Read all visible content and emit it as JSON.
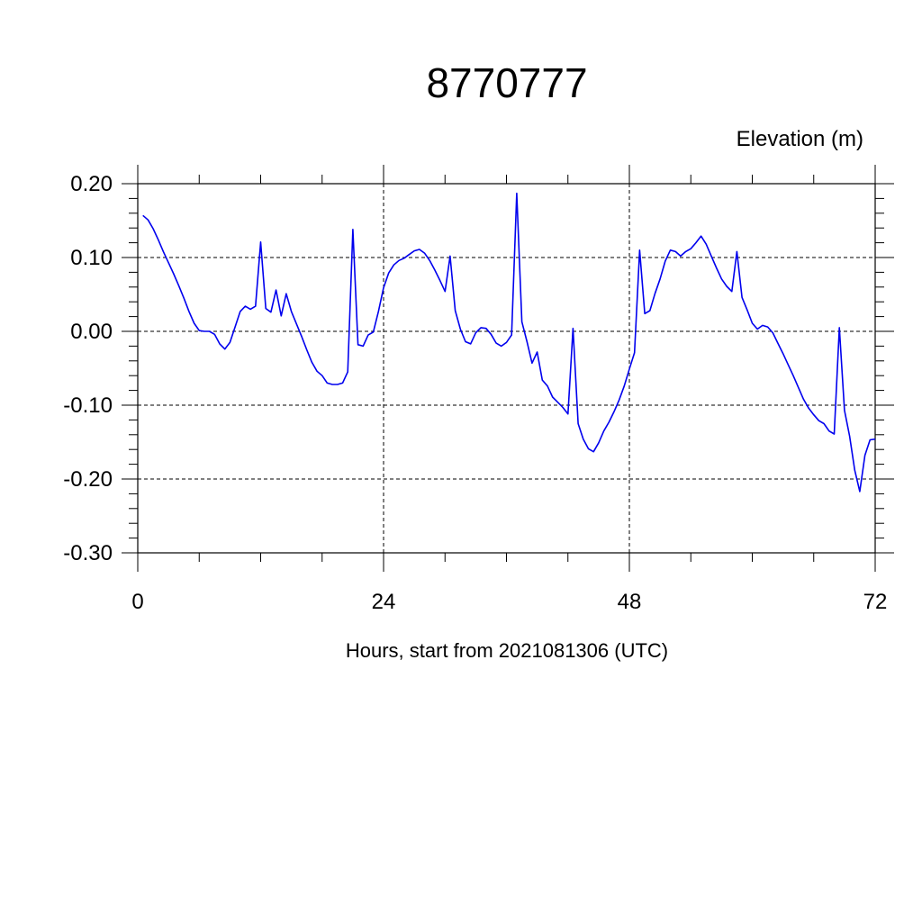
{
  "chart_data": {
    "type": "line",
    "title": "8770777",
    "ylabel": "Elevation (m)",
    "xlabel": "Hours, start from 2021081306 (UTC)",
    "xlim": [
      0,
      72
    ],
    "ylim": [
      -0.3,
      0.2
    ],
    "x_ticks": [
      0,
      24,
      48,
      72
    ],
    "x_tick_labels": [
      "0",
      "24",
      "48",
      "72"
    ],
    "y_ticks": [
      0.2,
      0.1,
      0.0,
      -0.1,
      -0.2,
      -0.3
    ],
    "y_tick_labels": [
      "0.20",
      "0.10",
      "0.00",
      "-0.10",
      "-0.20",
      "-0.30"
    ],
    "grid": true,
    "series_color": "#0000ee",
    "series": [
      {
        "x": [
          0.5,
          1,
          1.5,
          2,
          2.5,
          3,
          3.5,
          4,
          4.5,
          5,
          5.5,
          6,
          6.5,
          7,
          7.5,
          8,
          8.5,
          9,
          9.5,
          10,
          10.5,
          11,
          11.5,
          12,
          12.5,
          13,
          13.5,
          14,
          14.5,
          15,
          15.5,
          16,
          16.5,
          17,
          17.5,
          18,
          18.5,
          19,
          19.5,
          20,
          20.5,
          21,
          21.5,
          22,
          22.5,
          23,
          23.5,
          24,
          24.5,
          25,
          25.5,
          26,
          26.5,
          27,
          27.5,
          28,
          28.5,
          29,
          29.5,
          30,
          30.5,
          31,
          31.5,
          32,
          32.5,
          33,
          33.5,
          34,
          34.5,
          35,
          35.5,
          36,
          36.5,
          37,
          37.5,
          38,
          38.5,
          39,
          39.5,
          40,
          40.5,
          41,
          41.5,
          42,
          42.5,
          43,
          43.5,
          44,
          44.5,
          45,
          45.5,
          46,
          46.5,
          47,
          47.5,
          48,
          48.5,
          49,
          49.5,
          50,
          50.5,
          51,
          51.5,
          52,
          52.5,
          53,
          53.5,
          54,
          54.5,
          55,
          55.5,
          56,
          56.5,
          57,
          57.5,
          58,
          58.5,
          59,
          59.5,
          60,
          60.5,
          61,
          61.5,
          62,
          62.5,
          63,
          63.5,
          64,
          64.5,
          65,
          65.5,
          66,
          66.5,
          67,
          67.5,
          68,
          68.5,
          69,
          69.5,
          70,
          70.5,
          71,
          71.5,
          72
        ],
        "y": [
          0.157,
          0.151,
          0.139,
          0.124,
          0.108,
          0.093,
          0.078,
          0.062,
          0.045,
          0.027,
          0.011,
          0.001,
          0.0,
          0.0,
          -0.004,
          -0.017,
          -0.024,
          -0.015,
          0.006,
          0.027,
          0.034,
          0.03,
          0.034,
          0.121,
          0.031,
          0.026,
          0.056,
          0.021,
          0.051,
          0.027,
          0.01,
          -0.007,
          -0.025,
          -0.042,
          -0.054,
          -0.06,
          -0.07,
          -0.072,
          -0.072,
          -0.07,
          -0.055,
          0.138,
          -0.018,
          -0.02,
          -0.005,
          -0.001,
          0.027,
          0.059,
          0.079,
          0.09,
          0.096,
          0.099,
          0.104,
          0.109,
          0.111,
          0.106,
          0.096,
          0.083,
          0.069,
          0.054,
          0.102,
          0.028,
          0.003,
          -0.014,
          -0.017,
          -0.002,
          0.005,
          0.004,
          -0.004,
          -0.016,
          -0.02,
          -0.015,
          -0.005,
          0.187,
          0.013,
          -0.014,
          -0.043,
          -0.028,
          -0.066,
          -0.074,
          -0.089,
          -0.096,
          -0.103,
          -0.112,
          0.004,
          -0.125,
          -0.146,
          -0.159,
          -0.163,
          -0.151,
          -0.135,
          -0.123,
          -0.109,
          -0.093,
          -0.074,
          -0.051,
          -0.029,
          0.11,
          0.024,
          0.028,
          0.051,
          0.071,
          0.095,
          0.11,
          0.108,
          0.102,
          0.108,
          0.112,
          0.12,
          0.129,
          0.118,
          0.102,
          0.086,
          0.071,
          0.061,
          0.054,
          0.108,
          0.046,
          0.029,
          0.011,
          0.003,
          0.008,
          0.006,
          -0.002,
          -0.016,
          -0.03,
          -0.045,
          -0.06,
          -0.076,
          -0.092,
          -0.104,
          -0.113,
          -0.121,
          -0.125,
          -0.135,
          -0.139,
          0.005,
          -0.107,
          -0.142,
          -0.188,
          -0.217,
          -0.168,
          -0.147,
          -0.146
        ]
      }
    ]
  }
}
